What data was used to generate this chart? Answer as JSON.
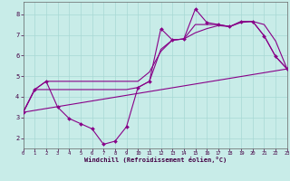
{
  "xlabel": "Windchill (Refroidissement éolien,°C)",
  "bg_color": "#c8ece8",
  "grid_color": "#a8d8d4",
  "line_color": "#880088",
  "xlim": [
    0,
    23
  ],
  "ylim": [
    1.5,
    8.6
  ],
  "yticks": [
    2,
    3,
    4,
    5,
    6,
    7,
    8
  ],
  "xticks": [
    0,
    1,
    2,
    3,
    4,
    5,
    6,
    7,
    8,
    9,
    10,
    11,
    12,
    13,
    14,
    15,
    16,
    17,
    18,
    19,
    20,
    21,
    22,
    23
  ],
  "line1_x": [
    0,
    1,
    2,
    3,
    4,
    5,
    6,
    7,
    8,
    9,
    10,
    11,
    12,
    13,
    14,
    15,
    16,
    17,
    18,
    19,
    20,
    21,
    22,
    23
  ],
  "line1_y": [
    3.25,
    4.35,
    4.75,
    3.5,
    2.95,
    2.7,
    2.45,
    1.7,
    1.85,
    2.55,
    4.45,
    4.75,
    7.3,
    6.75,
    6.8,
    8.25,
    7.6,
    7.5,
    7.4,
    7.65,
    7.65,
    6.95,
    5.95,
    5.35
  ],
  "line2_x": [
    0,
    1,
    2,
    3,
    10,
    11,
    12,
    13,
    14,
    15,
    16,
    17,
    18,
    19,
    20,
    21,
    22,
    23
  ],
  "line2_y": [
    3.25,
    4.35,
    4.75,
    4.75,
    4.75,
    5.2,
    6.2,
    6.75,
    6.8,
    7.5,
    7.5,
    7.5,
    7.4,
    7.65,
    7.65,
    6.95,
    5.95,
    5.35
  ],
  "line3_x": [
    0,
    23
  ],
  "line3_y": [
    3.25,
    5.35
  ],
  "line4_x": [
    0,
    1,
    2,
    3,
    4,
    5,
    6,
    7,
    8,
    9,
    10,
    11,
    12,
    13,
    14,
    15,
    16,
    17,
    18,
    19,
    20,
    21,
    22,
    23
  ],
  "line4_y": [
    3.25,
    4.35,
    4.35,
    4.35,
    4.35,
    4.35,
    4.35,
    4.35,
    4.35,
    4.35,
    4.45,
    4.75,
    6.3,
    6.75,
    6.8,
    7.1,
    7.3,
    7.45,
    7.4,
    7.6,
    7.65,
    7.5,
    6.7,
    5.35
  ]
}
